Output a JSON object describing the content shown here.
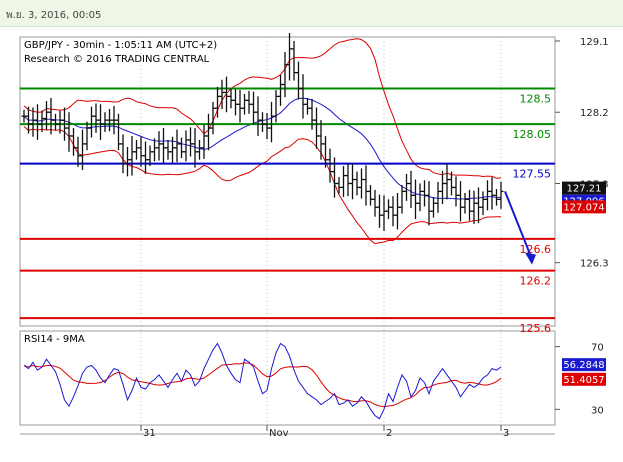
{
  "header": {
    "date_text": "พ.ย. 3, 2016, 00:05"
  },
  "chart_data": [
    {
      "type": "candlestick",
      "title": "GBP/JPY - 30min - 1:05:11 AM (UTC+2)",
      "subtitle": "Research © 2016 TRADING CENTRAL",
      "ylim": [
        125.5,
        129.15
      ],
      "y_ticks": [
        129.1,
        128.2,
        127.3,
        126.3
      ],
      "y_tick_labels": [
        "129.1",
        "128.2",
        "127.3",
        "126.3"
      ],
      "x_tick_labels": [
        "31",
        "Nov",
        "2",
        "3"
      ],
      "x_tick_index": [
        26,
        54,
        80,
        106
      ],
      "levels": [
        {
          "value": 128.5,
          "label": "128.5",
          "color": "#008800"
        },
        {
          "value": 128.05,
          "label": "128.05",
          "color": "#008800"
        },
        {
          "value": 127.55,
          "label": "127.55",
          "color": "#0000cc"
        },
        {
          "value": 126.6,
          "label": "126.6",
          "color": "#dd0000"
        },
        {
          "value": 126.2,
          "label": "126.2",
          "color": "#dd0000"
        },
        {
          "value": 125.6,
          "label": "125.6",
          "color": "#dd0000"
        }
      ],
      "price_badges": [
        {
          "label": "127.21",
          "value": 127.21,
          "color": "#111111"
        },
        {
          "label": "127.096",
          "value": 127.096,
          "color": "#1a1ad0"
        },
        {
          "label": "127.074",
          "value": 127.074,
          "color": "#dd0000"
        }
      ],
      "projection": {
        "from": 127.2,
        "to": 126.3
      },
      "close": [
        128.15,
        128.05,
        128.1,
        128.05,
        128.12,
        128.2,
        128.1,
        128.05,
        128.1,
        128.0,
        127.9,
        127.75,
        127.65,
        127.8,
        128.0,
        128.15,
        128.1,
        128.05,
        128.1,
        128.1,
        128.1,
        127.8,
        127.55,
        127.6,
        127.7,
        127.75,
        127.65,
        127.6,
        127.7,
        127.75,
        127.8,
        127.75,
        127.7,
        127.75,
        127.8,
        127.7,
        127.85,
        127.8,
        127.7,
        127.75,
        127.9,
        128.0,
        128.25,
        128.4,
        128.45,
        128.4,
        128.35,
        128.3,
        128.25,
        128.35,
        128.3,
        128.2,
        128.1,
        128.05,
        128.0,
        128.15,
        128.4,
        128.55,
        128.8,
        129.0,
        128.7,
        128.5,
        128.3,
        128.25,
        128.1,
        127.9,
        127.8,
        127.6,
        127.45,
        127.3,
        127.25,
        127.4,
        127.3,
        127.35,
        127.25,
        127.35,
        127.2,
        127.1,
        127.0,
        126.9,
        126.95,
        127.0,
        126.9,
        127.0,
        127.2,
        127.3,
        127.15,
        127.05,
        127.2,
        127.15,
        126.95,
        127.05,
        127.2,
        127.3,
        127.35,
        127.25,
        127.15,
        127.0,
        127.1,
        126.95,
        127.05,
        127.0,
        127.1,
        127.2,
        127.15,
        127.1,
        127.2
      ],
      "rsi_panel": {
        "title": "RSI14 - 9MA",
        "ylim": [
          20,
          80
        ],
        "y_ticks": [
          70,
          30
        ],
        "y_tick_labels": [
          "70",
          "30"
        ],
        "rsi_badge": {
          "label": "56.2848",
          "value": 56.2848,
          "color": "#1a1ad0"
        },
        "ma_badge": {
          "label": "51.4057",
          "value": 51.4057,
          "color": "#dd0000"
        },
        "rsi": [
          58,
          56,
          60,
          55,
          57,
          62,
          58,
          54,
          46,
          36,
          32,
          38,
          45,
          53,
          57,
          58,
          55,
          50,
          47,
          52,
          56,
          55,
          46,
          36,
          42,
          50,
          44,
          43,
          47,
          49,
          52,
          48,
          44,
          49,
          53,
          48,
          55,
          52,
          45,
          48,
          56,
          62,
          68,
          72,
          66,
          58,
          53,
          49,
          47,
          62,
          60,
          57,
          48,
          40,
          42,
          56,
          66,
          72,
          70,
          64,
          55,
          48,
          44,
          40,
          38,
          36,
          33,
          35,
          37,
          40,
          33,
          34,
          36,
          32,
          34,
          38,
          35,
          30,
          26,
          24,
          30,
          40,
          35,
          44,
          52,
          48,
          38,
          42,
          50,
          47,
          40,
          48,
          52,
          56,
          52,
          48,
          44,
          38,
          42,
          46,
          44,
          46,
          50,
          52,
          56,
          55,
          57
        ]
      }
    }
  ]
}
